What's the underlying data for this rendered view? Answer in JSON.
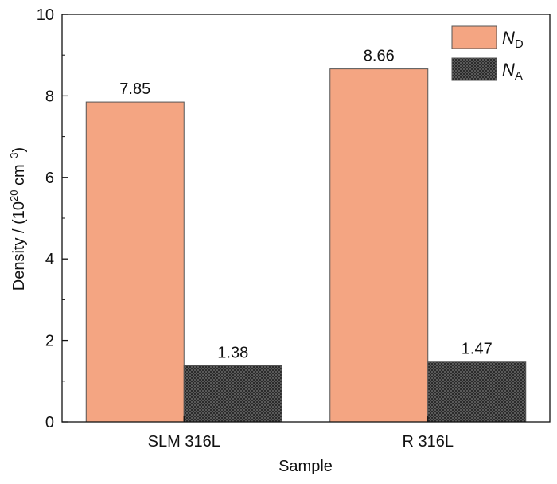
{
  "chart_data": {
    "type": "bar",
    "title": "",
    "xlabel": "Sample",
    "ylabel": "Density / (10",
    "ylabel_sup": "20",
    "ylabel_unit": " cm",
    "ylabel_unit_sup": "−3",
    "ylabel_close": ")",
    "ylim": [
      0,
      10
    ],
    "yticks": [
      0,
      2,
      4,
      6,
      8,
      10
    ],
    "categories": [
      "SLM 316L",
      "R 316L"
    ],
    "series": [
      {
        "name": "N",
        "name_sub": "D",
        "values": [
          7.85,
          8.66
        ],
        "value_labels": [
          "7.85",
          "8.66"
        ],
        "color": "#F4A582",
        "pattern": "solid"
      },
      {
        "name": "N",
        "name_sub": "A",
        "values": [
          1.38,
          1.47
        ],
        "value_labels": [
          "1.38",
          "1.47"
        ],
        "color": "#3A3A3A",
        "pattern": "checker"
      }
    ],
    "legend_position": "top-right",
    "grid": false
  }
}
